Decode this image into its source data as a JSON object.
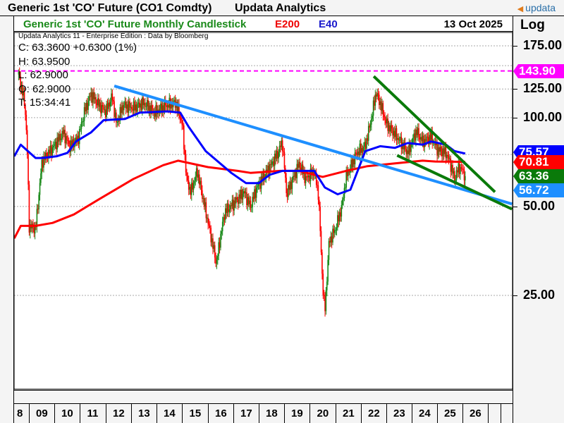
{
  "header": {
    "title": "Generic 1st 'CO' Future (CO1 Comdty)",
    "brand": "Updata Analytics",
    "logo": "updata"
  },
  "chart_header": {
    "subtitle": "Generic 1st 'CO' Future Monthly Candlestick",
    "e200_label": "E200",
    "e40_label": "E40",
    "date": "13 Oct 2025",
    "scale": "Log"
  },
  "info": {
    "credit": "Updata Analytics 11 - Enterprise Edition : Data by Bloomberg",
    "close": "C: 63.3600  +0.6300 (1%)",
    "high": "H: 63.9500",
    "low": "L: 62.9000",
    "open": "O: 62.9000",
    "time": "T: 15:34:41"
  },
  "chart_data": {
    "type": "candlestick",
    "yscale": "log",
    "ylim": [
      14,
      200
    ],
    "grid": true,
    "yticks": [
      "175.00",
      "125.00",
      "100.00",
      "50.00",
      "25.00"
    ],
    "ygrid": [
      175,
      150,
      125,
      100,
      75,
      50,
      25
    ],
    "xticks": [
      "8",
      "09",
      "10",
      "11",
      "12",
      "13",
      "14",
      "15",
      "16",
      "17",
      "18",
      "19",
      "20",
      "21",
      "22",
      "23",
      "24",
      "25",
      "26"
    ],
    "close_approx": [
      [
        "2008-04",
        140
      ],
      [
        "2008-05",
        130
      ],
      [
        "2008-07",
        110
      ],
      [
        "2008-08",
        80
      ],
      [
        "2008-09",
        43
      ],
      [
        "2008-12",
        42
      ],
      [
        "2009-03",
        71
      ],
      [
        "2009-08",
        79
      ],
      [
        "2010-01",
        89
      ],
      [
        "2010-04",
        80
      ],
      [
        "2010-08",
        85
      ],
      [
        "2010-11",
        105
      ],
      [
        "2011-02",
        120
      ],
      [
        "2011-06",
        110
      ],
      [
        "2011-09",
        105
      ],
      [
        "2011-12",
        118
      ],
      [
        "2012-02",
        95
      ],
      [
        "2012-05",
        110
      ],
      [
        "2012-10",
        108
      ],
      [
        "2013-03",
        112
      ],
      [
        "2013-08",
        104
      ],
      [
        "2014-01",
        110
      ],
      [
        "2014-06",
        112
      ],
      [
        "2014-09",
        95
      ],
      [
        "2014-11",
        62
      ],
      [
        "2015-01",
        56
      ],
      [
        "2015-04",
        66
      ],
      [
        "2015-07",
        52
      ],
      [
        "2015-11",
        38
      ],
      [
        "2016-01",
        32
      ],
      [
        "2016-03",
        40
      ],
      [
        "2016-05",
        48
      ],
      [
        "2016-10",
        52
      ],
      [
        "2017-02",
        56
      ],
      [
        "2017-05",
        50
      ],
      [
        "2017-08",
        58
      ],
      [
        "2018-01",
        66
      ],
      [
        "2018-06",
        76
      ],
      [
        "2018-08",
        83
      ],
      [
        "2018-10",
        55
      ],
      [
        "2019-01",
        62
      ],
      [
        "2019-04",
        70
      ],
      [
        "2019-07",
        62
      ],
      [
        "2019-11",
        66
      ],
      [
        "2020-01",
        55
      ],
      [
        "2020-03",
        27
      ],
      [
        "2020-04",
        22
      ],
      [
        "2020-06",
        38
      ],
      [
        "2020-09",
        42
      ],
      [
        "2020-12",
        50
      ],
      [
        "2021-02",
        63
      ],
      [
        "2021-07",
        76
      ],
      [
        "2021-11",
        80
      ],
      [
        "2022-02",
        100
      ],
      [
        "2022-04",
        122
      ],
      [
        "2022-06",
        112
      ],
      [
        "2022-09",
        95
      ],
      [
        "2023-01",
        88
      ],
      [
        "2023-05",
        80
      ],
      [
        "2023-07",
        76
      ],
      [
        "2023-11",
        90
      ],
      [
        "2024-02",
        83
      ],
      [
        "2024-06",
        86
      ],
      [
        "2024-09",
        78
      ],
      [
        "2025-01",
        76
      ],
      [
        "2025-03",
        70
      ],
      [
        "2025-05",
        62
      ],
      [
        "2025-07",
        68
      ],
      [
        "2025-09",
        66
      ],
      [
        "2025-10",
        63.36
      ]
    ],
    "series": [
      {
        "name": "E200",
        "color": "#ff0000",
        "last": "70.81",
        "values": [
          [
            "2008-02",
            39
          ],
          [
            "2008-05",
            43
          ],
          [
            "2008-12",
            43
          ],
          [
            "2009-08",
            44
          ],
          [
            "2010-06",
            47
          ],
          [
            "2011-06",
            53
          ],
          [
            "2012-10",
            62
          ],
          [
            "2013-12",
            69
          ],
          [
            "2014-07",
            71.5
          ],
          [
            "2015-09",
            68
          ],
          [
            "2016-11",
            66
          ],
          [
            "2017-05",
            65
          ],
          [
            "2018-07",
            66
          ],
          [
            "2019-04",
            66
          ],
          [
            "2020-03",
            63
          ],
          [
            "2021-02",
            66
          ],
          [
            "2021-12",
            68.5
          ],
          [
            "2023-01",
            70
          ],
          [
            "2024-02",
            71.5
          ],
          [
            "2024-08",
            71
          ],
          [
            "2025-10",
            70.81
          ]
        ]
      },
      {
        "name": "E40",
        "color": "#0000ff",
        "last": "75.57",
        "values": [
          [
            "2008-02",
            74
          ],
          [
            "2008-05",
            81
          ],
          [
            "2008-12",
            73
          ],
          [
            "2009-03",
            73
          ],
          [
            "2009-10",
            74
          ],
          [
            "2010-03",
            76
          ],
          [
            "2010-07",
            83
          ],
          [
            "2011-02",
            89
          ],
          [
            "2011-08",
            98
          ],
          [
            "2012-06",
            99
          ],
          [
            "2013-01",
            104
          ],
          [
            "2014-02",
            105
          ],
          [
            "2014-08",
            104
          ],
          [
            "2014-12",
            93
          ],
          [
            "2015-08",
            77
          ],
          [
            "2016-08",
            65
          ],
          [
            "2017-03",
            60
          ],
          [
            "2017-09",
            60
          ],
          [
            "2018-02",
            64
          ],
          [
            "2018-08",
            66
          ],
          [
            "2019-11",
            66
          ],
          [
            "2020-04",
            58
          ],
          [
            "2020-10",
            55
          ],
          [
            "2021-04",
            57
          ],
          [
            "2021-11",
            77
          ],
          [
            "2022-06",
            80
          ],
          [
            "2023-01",
            79
          ],
          [
            "2023-07",
            82
          ],
          [
            "2024-02",
            81
          ],
          [
            "2024-06",
            83
          ],
          [
            "2025-01",
            81
          ],
          [
            "2025-05",
            77
          ],
          [
            "2025-10",
            75.57
          ]
        ]
      }
    ],
    "trendlines": [
      {
        "color": "#1e8fff",
        "from": [
          "2012-01",
          128
        ],
        "to": [
          "2027-08",
          51
        ],
        "label": "56.72"
      },
      {
        "color": "#0a7a0a",
        "from": [
          "2022-03",
          138
        ],
        "to": [
          "2026-12",
          56
        ]
      },
      {
        "color": "#0a7a0a",
        "from": [
          "2023-02",
          74.5
        ],
        "to": [
          "2027-08",
          49
        ]
      }
    ],
    "hline": {
      "value": 143.9,
      "label": "143.90",
      "color": "#ff00ff"
    },
    "last_price": {
      "label": "63.36",
      "color": "#0a7a0a"
    },
    "candle_colors": {
      "up": "#1a8a1a",
      "down": "#ff0000"
    }
  }
}
